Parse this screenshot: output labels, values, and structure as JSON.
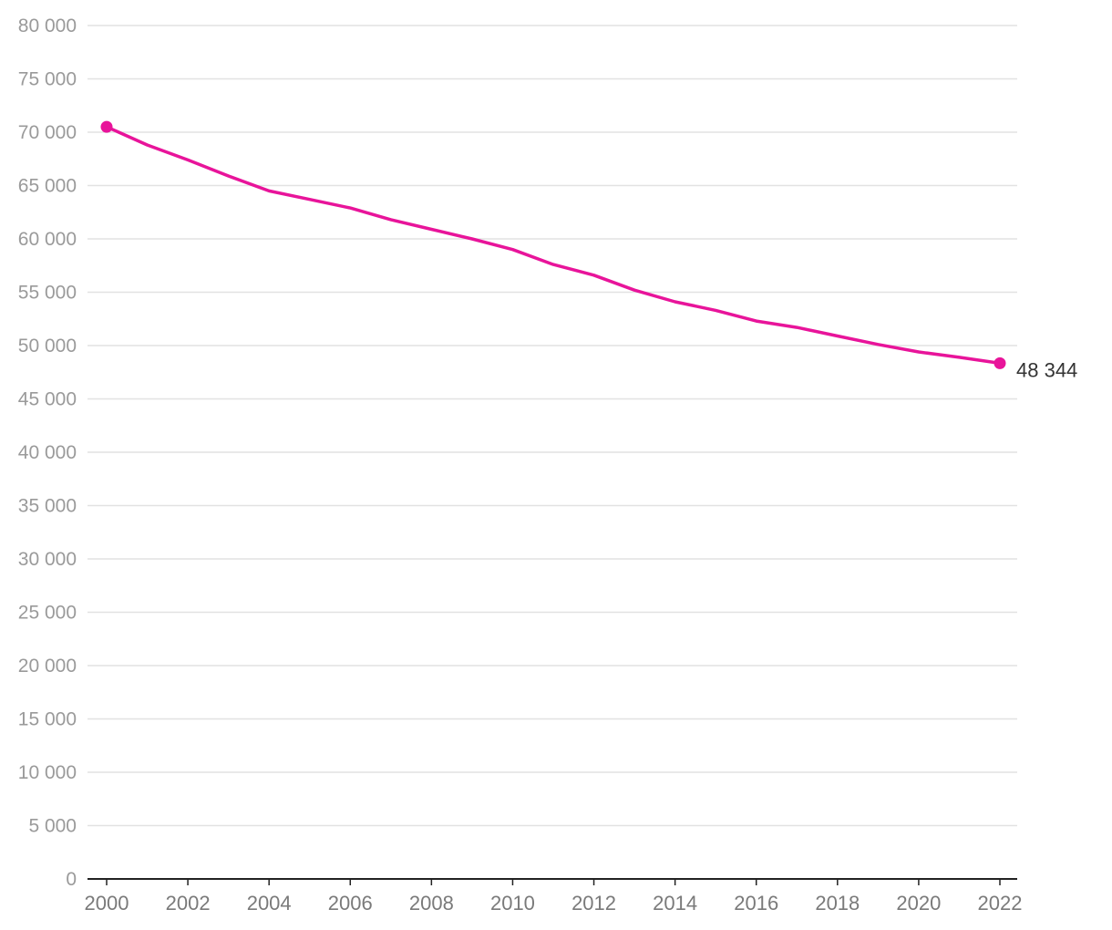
{
  "chart_data": {
    "type": "line",
    "title": "",
    "xlabel": "",
    "ylabel": "",
    "x": [
      2000,
      2001,
      2002,
      2003,
      2004,
      2005,
      2006,
      2007,
      2008,
      2009,
      2010,
      2011,
      2012,
      2013,
      2014,
      2015,
      2016,
      2017,
      2018,
      2019,
      2020,
      2021,
      2022
    ],
    "series": [
      {
        "values": [
          70500,
          68800,
          67400,
          65900,
          64500,
          63700,
          62900,
          61800,
          60900,
          60000,
          59000,
          57600,
          56600,
          55200,
          54100,
          53300,
          52300,
          51700,
          50900,
          50100,
          49400,
          48900,
          48344
        ],
        "color": "#e8149a"
      }
    ],
    "ylim": [
      0,
      80000
    ],
    "y_ticks": [
      0,
      5000,
      10000,
      15000,
      20000,
      25000,
      30000,
      35000,
      40000,
      45000,
      50000,
      55000,
      60000,
      65000,
      70000,
      75000,
      80000
    ],
    "y_tick_labels": [
      "0",
      "5 000",
      "10 000",
      "15 000",
      "20 000",
      "25 000",
      "30 000",
      "35 000",
      "40 000",
      "45 000",
      "50 000",
      "55 000",
      "60 000",
      "65 000",
      "70 000",
      "75 000",
      "80 000"
    ],
    "x_ticks": [
      2000,
      2002,
      2004,
      2006,
      2008,
      2010,
      2012,
      2014,
      2016,
      2018,
      2020,
      2022
    ],
    "x_tick_labels": [
      "2000",
      "2002",
      "2004",
      "2006",
      "2008",
      "2010",
      "2012",
      "2014",
      "2016",
      "2018",
      "2020",
      "2022"
    ],
    "end_label": "48 344",
    "grid": true,
    "legend": "none"
  }
}
